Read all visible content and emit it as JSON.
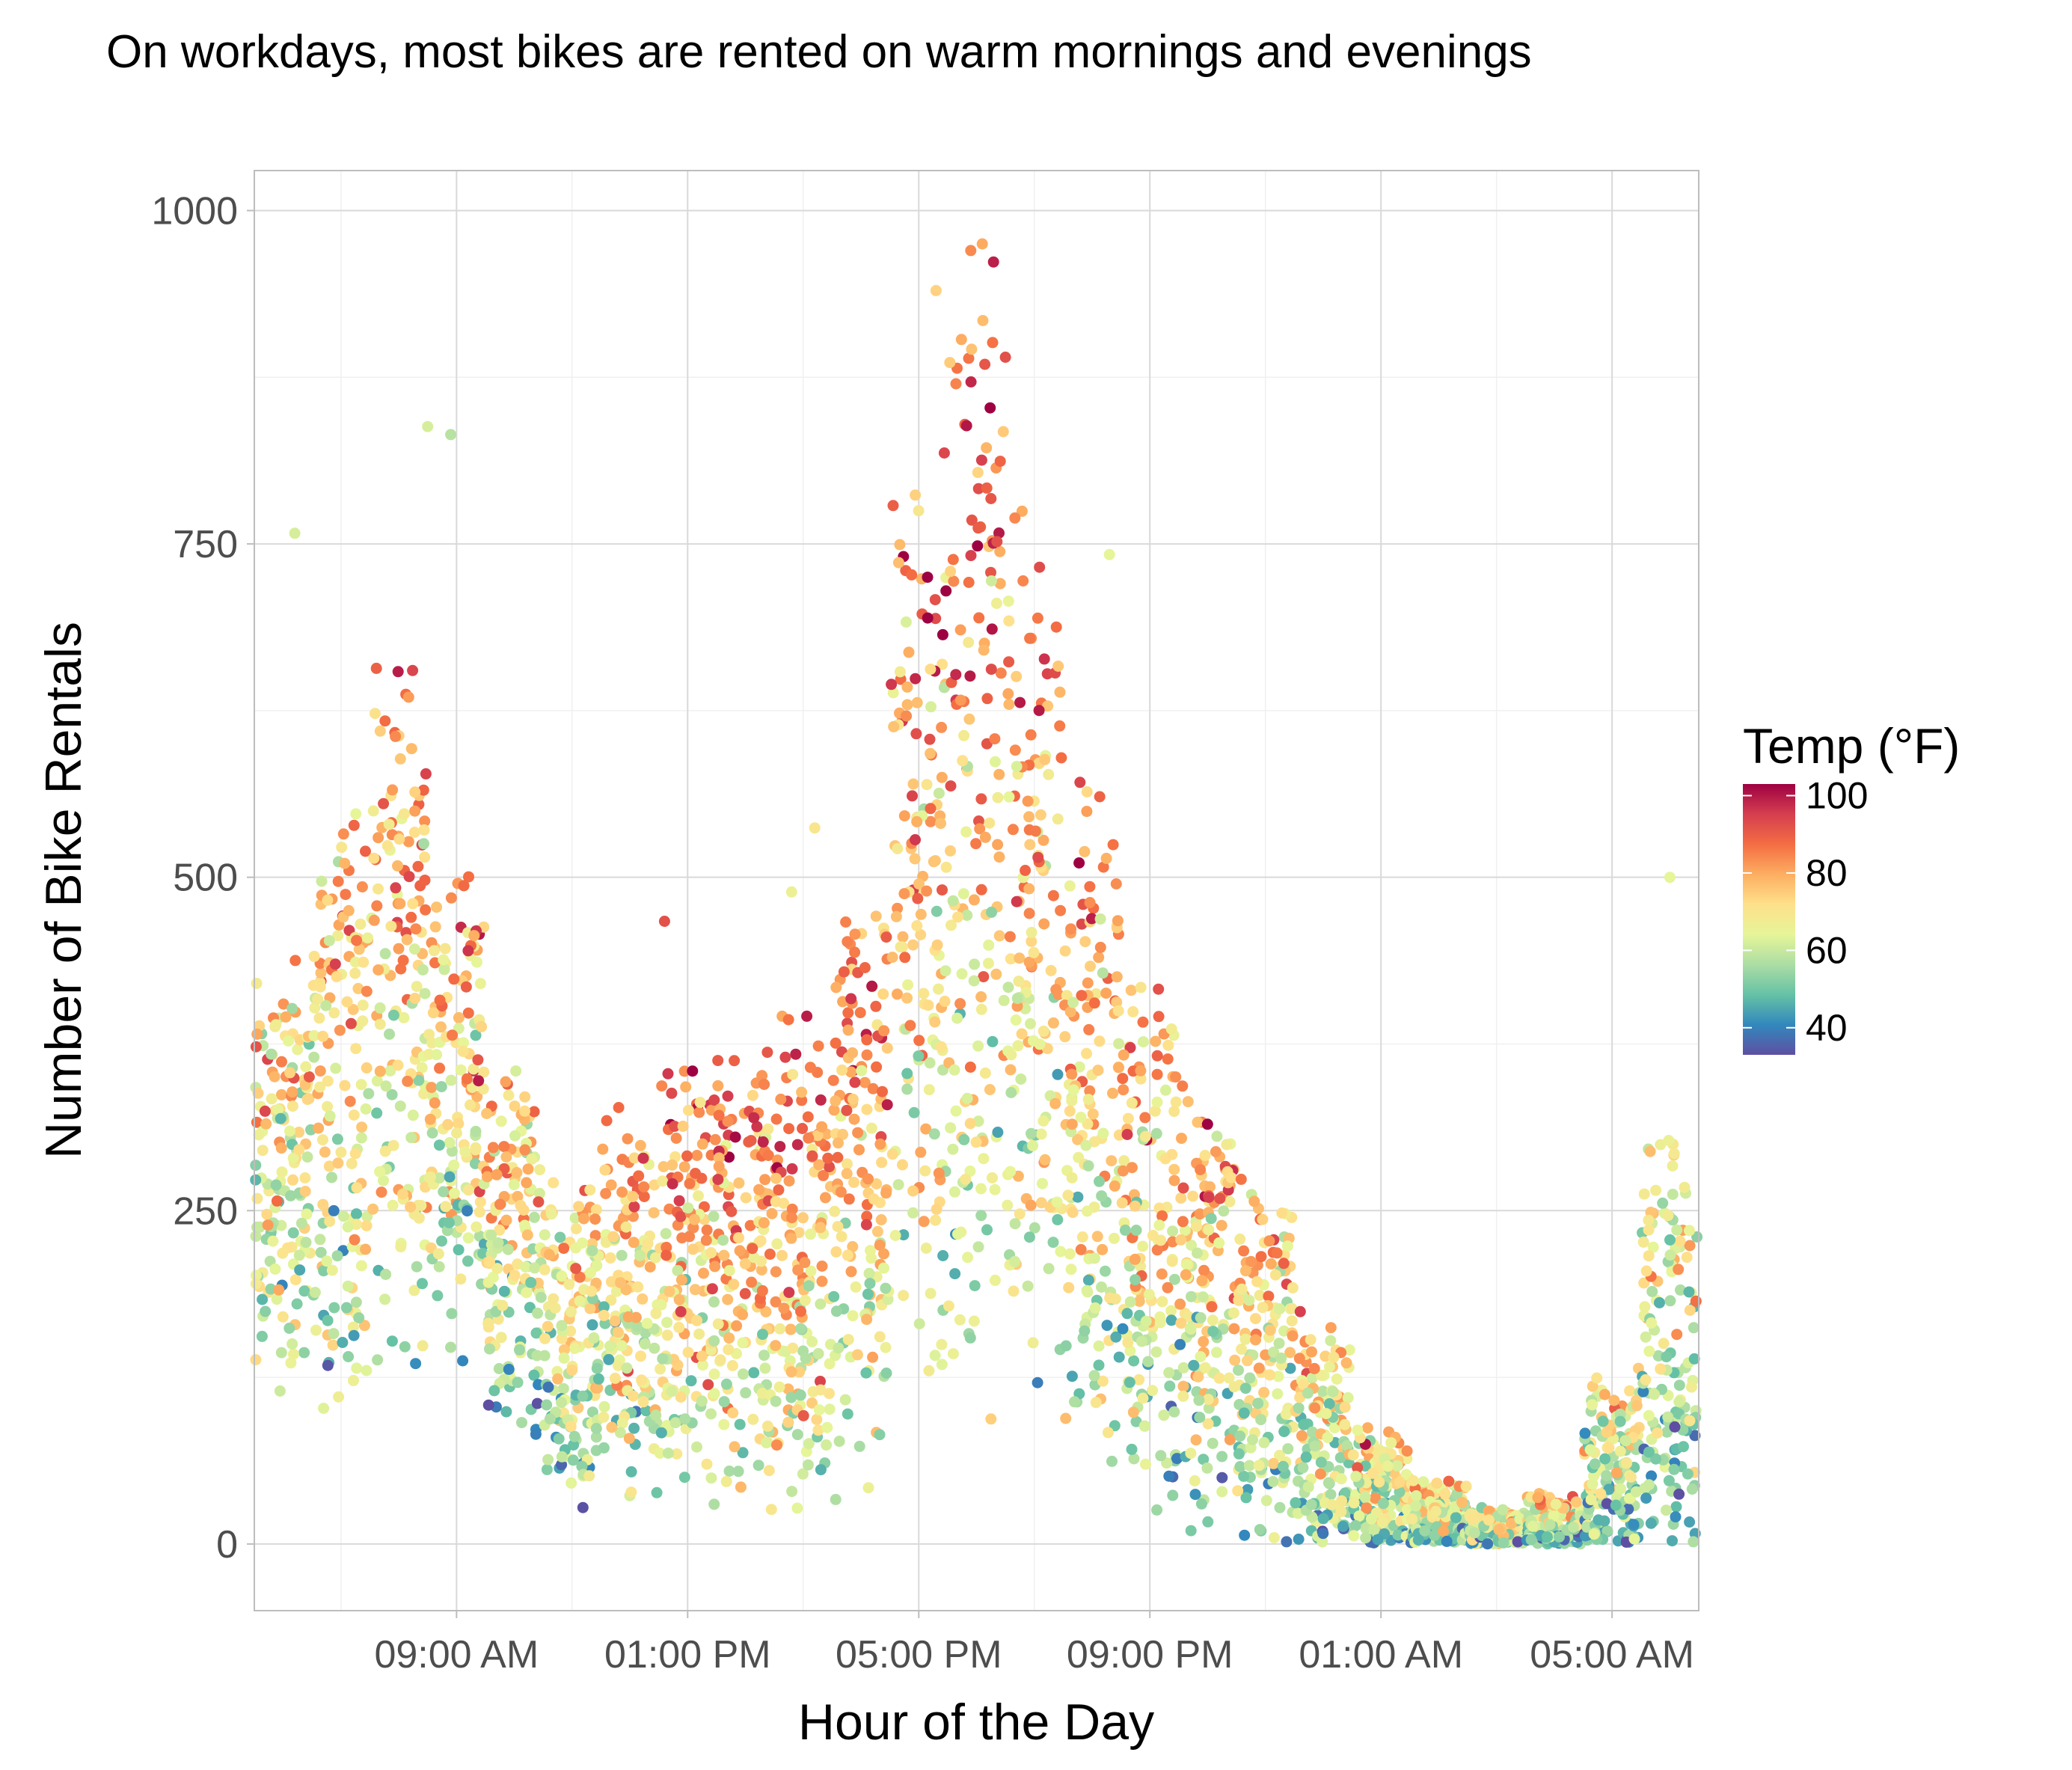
{
  "chart_data": {
    "type": "scatter",
    "title": "On workdays, most bikes are rented on warm mornings and evenings",
    "xlabel": "Hour of the Day",
    "ylabel": "Number of Bike Rentals",
    "x_hour_range": [
      5.5,
      30.5
    ],
    "x_ticks": [
      {
        "hour": 9,
        "label": "09:00 AM"
      },
      {
        "hour": 13,
        "label": "01:00 PM"
      },
      {
        "hour": 17,
        "label": "05:00 PM"
      },
      {
        "hour": 21,
        "label": "09:00 PM"
      },
      {
        "hour": 25,
        "label": "01:00 AM"
      },
      {
        "hour": 29,
        "label": "05:00 AM"
      }
    ],
    "ylim": [
      -50,
      1030
    ],
    "y_ticks": [
      0,
      250,
      500,
      750,
      1000
    ],
    "grid": true,
    "legend": {
      "title": "Temp (°F)",
      "placement": "right",
      "range": [
        33,
        103
      ],
      "ticks": [
        40,
        60,
        80,
        100
      ],
      "colors": [
        "#5E4FA2",
        "#3288BD",
        "#66C2A5",
        "#ABDDA4",
        "#E6F598",
        "#FEE08B",
        "#FDAE61",
        "#F46D43",
        "#D53E4F",
        "#9E0142"
      ]
    },
    "hourly_profile": [
      {
        "hour": 6,
        "median": 280,
        "spread": 300,
        "temp": 66
      },
      {
        "hour": 7,
        "median": 330,
        "spread": 420,
        "temp": 70
      },
      {
        "hour": 8,
        "median": 400,
        "spread": 480,
        "temp": 72
      },
      {
        "hour": 9,
        "median": 330,
        "spread": 330,
        "temp": 70
      },
      {
        "hour": 10,
        "median": 220,
        "spread": 240,
        "temp": 66
      },
      {
        "hour": 11,
        "median": 150,
        "spread": 220,
        "temp": 65
      },
      {
        "hour": 12,
        "median": 180,
        "spread": 260,
        "temp": 70
      },
      {
        "hour": 13,
        "median": 200,
        "spread": 300,
        "temp": 74
      },
      {
        "hour": 14,
        "median": 200,
        "spread": 320,
        "temp": 76
      },
      {
        "hour": 15,
        "median": 210,
        "spread": 340,
        "temp": 76
      },
      {
        "hour": 16,
        "median": 270,
        "spread": 420,
        "temp": 76
      },
      {
        "hour": 17,
        "median": 470,
        "spread": 650,
        "temp": 74
      },
      {
        "hour": 18,
        "median": 520,
        "spread": 760,
        "temp": 76
      },
      {
        "hour": 19,
        "median": 440,
        "spread": 600,
        "temp": 74
      },
      {
        "hour": 20,
        "median": 320,
        "spread": 470,
        "temp": 72
      },
      {
        "hour": 21,
        "median": 230,
        "spread": 380,
        "temp": 70
      },
      {
        "hour": 22,
        "median": 180,
        "spread": 300,
        "temp": 68
      },
      {
        "hour": 23,
        "median": 130,
        "spread": 250,
        "temp": 66
      },
      {
        "hour": 24,
        "median": 80,
        "spread": 170,
        "temp": 64
      },
      {
        "hour": 25,
        "median": 40,
        "spread": 90,
        "temp": 64
      },
      {
        "hour": 26,
        "median": 20,
        "spread": 50,
        "temp": 62
      },
      {
        "hour": 27,
        "median": 10,
        "spread": 30,
        "temp": 62
      },
      {
        "hour": 28,
        "median": 15,
        "spread": 40,
        "temp": 62
      },
      {
        "hour": 29,
        "median": 55,
        "spread": 130,
        "temp": 60
      },
      {
        "hour": 30,
        "median": 150,
        "spread": 300,
        "temp": 60
      }
    ],
    "peak_points": [
      {
        "hour": 18.1,
        "value": 975,
        "temp": 80
      },
      {
        "hour": 17.9,
        "value": 970,
        "temp": 84
      },
      {
        "hour": 17.3,
        "value": 940,
        "temp": 74
      },
      {
        "hour": 18.5,
        "value": 890,
        "temp": 92
      },
      {
        "hour": 8.5,
        "value": 838,
        "temp": 62
      },
      {
        "hour": 8.9,
        "value": 832,
        "temp": 58
      },
      {
        "hour": 6.2,
        "value": 758,
        "temp": 62
      },
      {
        "hour": 20.3,
        "value": 742,
        "temp": 64
      },
      {
        "hour": 30.0,
        "value": 500,
        "temp": 64
      },
      {
        "hour": 12.6,
        "value": 467,
        "temp": 92
      },
      {
        "hour": 14.8,
        "value": 489,
        "temp": 66
      },
      {
        "hour": 15.2,
        "value": 537,
        "temp": 70
      }
    ]
  }
}
